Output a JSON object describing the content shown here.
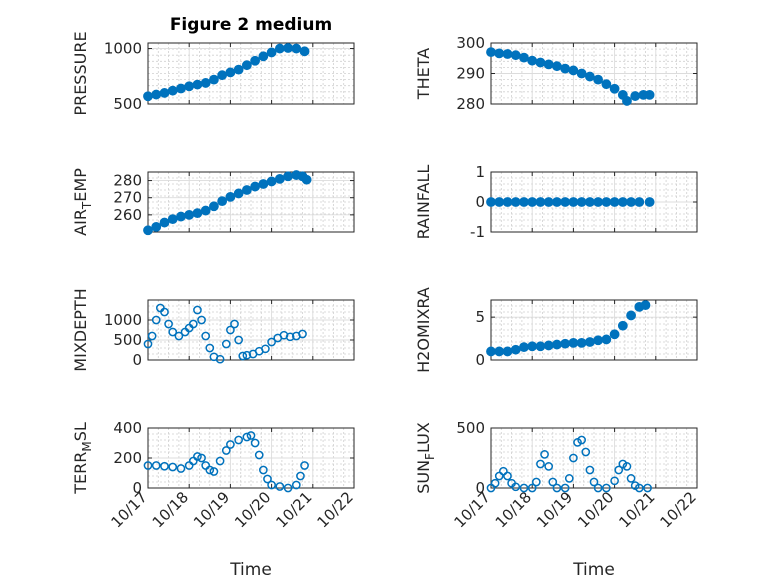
{
  "figure": {
    "title": "Figure 2 medium",
    "xlabel": "Time",
    "marker_color": "#0072BD"
  },
  "chart_data": [
    {
      "type": "scatter",
      "name": "pressure",
      "ylabel": "PRESSURE",
      "ylim": [
        500,
        1050
      ],
      "yticks": [
        500,
        1000
      ],
      "ytick_labels": [
        "500",
        "1000"
      ],
      "x_range": [
        "10/17",
        "10/22"
      ],
      "xticks": [
        "10/17",
        "10/18",
        "10/19",
        "10/20",
        "10/21",
        "10/22"
      ],
      "show_xtick_labels": false,
      "marker": "filled-circle",
      "points": [
        [
          0,
          570
        ],
        [
          0.2,
          585
        ],
        [
          0.4,
          600
        ],
        [
          0.6,
          620
        ],
        [
          0.8,
          640
        ],
        [
          1.0,
          660
        ],
        [
          1.2,
          675
        ],
        [
          1.4,
          690
        ],
        [
          1.6,
          720
        ],
        [
          1.8,
          760
        ],
        [
          2.0,
          785
        ],
        [
          2.2,
          810
        ],
        [
          2.4,
          850
        ],
        [
          2.6,
          890
        ],
        [
          2.8,
          930
        ],
        [
          3.0,
          965
        ],
        [
          3.2,
          1000
        ],
        [
          3.4,
          1005
        ],
        [
          3.6,
          1000
        ],
        [
          3.8,
          975
        ]
      ]
    },
    {
      "type": "scatter",
      "name": "theta",
      "ylabel": "THETA",
      "ylim": [
        280,
        300
      ],
      "yticks": [
        280,
        290,
        300
      ],
      "ytick_labels": [
        "280",
        "290",
        "300"
      ],
      "x_range": [
        "10/17",
        "10/22"
      ],
      "xticks": [
        "10/17",
        "10/18",
        "10/19",
        "10/20",
        "10/21",
        "10/22"
      ],
      "show_xtick_labels": false,
      "marker": "filled-circle",
      "points": [
        [
          0,
          297
        ],
        [
          0.2,
          296.6
        ],
        [
          0.4,
          296.4
        ],
        [
          0.6,
          296
        ],
        [
          0.8,
          295.2
        ],
        [
          1.0,
          294.2
        ],
        [
          1.2,
          293.6
        ],
        [
          1.4,
          293
        ],
        [
          1.6,
          292.4
        ],
        [
          1.8,
          291.6
        ],
        [
          2.0,
          291
        ],
        [
          2.2,
          290
        ],
        [
          2.4,
          289
        ],
        [
          2.6,
          288
        ],
        [
          2.8,
          286.5
        ],
        [
          3.0,
          285
        ],
        [
          3.2,
          283
        ],
        [
          3.3,
          281
        ],
        [
          3.5,
          282.6
        ],
        [
          3.7,
          283
        ],
        [
          3.85,
          283
        ]
      ]
    },
    {
      "type": "scatter",
      "name": "air_temp",
      "ylabel": "AIR_TEMP",
      "ylabel_main": "AIR",
      "ylabel_sub": "T",
      "ylabel_rest": "EMP",
      "ylim": [
        250,
        285
      ],
      "yticks": [
        260,
        270,
        280
      ],
      "ytick_labels": [
        "260",
        "270",
        "280"
      ],
      "x_range": [
        "10/17",
        "10/22"
      ],
      "xticks": [
        "10/17",
        "10/18",
        "10/19",
        "10/20",
        "10/21",
        "10/22"
      ],
      "show_xtick_labels": false,
      "marker": "filled-circle",
      "points": [
        [
          0,
          251
        ],
        [
          0.2,
          253
        ],
        [
          0.4,
          255.5
        ],
        [
          0.6,
          257.5
        ],
        [
          0.8,
          259
        ],
        [
          1.0,
          260
        ],
        [
          1.2,
          261
        ],
        [
          1.4,
          262.5
        ],
        [
          1.6,
          265
        ],
        [
          1.8,
          268
        ],
        [
          2.0,
          270.5
        ],
        [
          2.2,
          272.5
        ],
        [
          2.4,
          274.5
        ],
        [
          2.6,
          276.5
        ],
        [
          2.8,
          278
        ],
        [
          3.0,
          279.5
        ],
        [
          3.2,
          281
        ],
        [
          3.4,
          282.5
        ],
        [
          3.6,
          283.2
        ],
        [
          3.75,
          282.5
        ],
        [
          3.85,
          280.5
        ]
      ]
    },
    {
      "type": "scatter",
      "name": "rainfall",
      "ylabel": "RAINFALL",
      "ylim": [
        -1,
        1
      ],
      "yticks": [
        -1,
        0,
        1
      ],
      "ytick_labels": [
        "-1",
        "0",
        "1"
      ],
      "x_range": [
        "10/17",
        "10/22"
      ],
      "xticks": [
        "10/17",
        "10/18",
        "10/19",
        "10/20",
        "10/21",
        "10/22"
      ],
      "show_xtick_labels": false,
      "marker": "filled-circle",
      "points": [
        [
          0,
          0
        ],
        [
          0.2,
          0
        ],
        [
          0.4,
          0
        ],
        [
          0.6,
          0
        ],
        [
          0.8,
          0
        ],
        [
          1.0,
          0
        ],
        [
          1.2,
          0
        ],
        [
          1.4,
          0
        ],
        [
          1.6,
          0
        ],
        [
          1.8,
          0
        ],
        [
          2.0,
          0
        ],
        [
          2.2,
          0
        ],
        [
          2.4,
          0
        ],
        [
          2.6,
          0
        ],
        [
          2.8,
          0
        ],
        [
          3.0,
          0
        ],
        [
          3.2,
          0
        ],
        [
          3.4,
          0
        ],
        [
          3.6,
          0
        ],
        [
          3.85,
          0
        ]
      ]
    },
    {
      "type": "scatter",
      "name": "mixdepth",
      "ylabel": "MIXDEPTH",
      "ylim": [
        0,
        1500
      ],
      "yticks": [
        0,
        500,
        1000
      ],
      "ytick_labels": [
        "0",
        "500",
        "1000"
      ],
      "x_range": [
        "10/17",
        "10/22"
      ],
      "xticks": [
        "10/17",
        "10/18",
        "10/19",
        "10/20",
        "10/21",
        "10/22"
      ],
      "show_xtick_labels": false,
      "marker": "open-circle",
      "points": [
        [
          0,
          400
        ],
        [
          0.1,
          600
        ],
        [
          0.2,
          1000
        ],
        [
          0.3,
          1300
        ],
        [
          0.4,
          1200
        ],
        [
          0.5,
          900
        ],
        [
          0.6,
          700
        ],
        [
          0.75,
          600
        ],
        [
          0.9,
          700
        ],
        [
          1.0,
          800
        ],
        [
          1.1,
          900
        ],
        [
          1.2,
          1250
        ],
        [
          1.3,
          1000
        ],
        [
          1.4,
          600
        ],
        [
          1.5,
          300
        ],
        [
          1.6,
          80
        ],
        [
          1.75,
          20
        ],
        [
          1.9,
          400
        ],
        [
          2.0,
          750
        ],
        [
          2.1,
          900
        ],
        [
          2.2,
          500
        ],
        [
          2.3,
          100
        ],
        [
          2.4,
          120
        ],
        [
          2.55,
          150
        ],
        [
          2.7,
          220
        ],
        [
          2.85,
          280
        ],
        [
          3.0,
          450
        ],
        [
          3.15,
          550
        ],
        [
          3.3,
          620
        ],
        [
          3.45,
          580
        ],
        [
          3.6,
          600
        ],
        [
          3.75,
          650
        ]
      ]
    },
    {
      "type": "scatter",
      "name": "h2omixra",
      "ylabel": "H2OMIXRA",
      "ylim": [
        0,
        7
      ],
      "yticks": [
        0,
        5
      ],
      "ytick_labels": [
        "0",
        "5"
      ],
      "x_range": [
        "10/17",
        "10/22"
      ],
      "xticks": [
        "10/17",
        "10/18",
        "10/19",
        "10/20",
        "10/21",
        "10/22"
      ],
      "show_xtick_labels": false,
      "marker": "filled-circle",
      "points": [
        [
          0,
          1
        ],
        [
          0.2,
          1
        ],
        [
          0.4,
          1
        ],
        [
          0.6,
          1.2
        ],
        [
          0.8,
          1.5
        ],
        [
          1.0,
          1.6
        ],
        [
          1.2,
          1.6
        ],
        [
          1.4,
          1.7
        ],
        [
          1.6,
          1.8
        ],
        [
          1.8,
          1.9
        ],
        [
          2.0,
          2
        ],
        [
          2.2,
          2
        ],
        [
          2.4,
          2.1
        ],
        [
          2.6,
          2.3
        ],
        [
          2.8,
          2.4
        ],
        [
          3.0,
          3
        ],
        [
          3.2,
          4
        ],
        [
          3.4,
          5.2
        ],
        [
          3.6,
          6.2
        ],
        [
          3.75,
          6.4
        ]
      ]
    },
    {
      "type": "scatter",
      "name": "terr_msl",
      "ylabel": "TERR_MSL",
      "ylabel_main": "TERR",
      "ylabel_sub": "M",
      "ylabel_rest": "SL",
      "ylim": [
        0,
        400
      ],
      "yticks": [
        0,
        200,
        400
      ],
      "ytick_labels": [
        "0",
        "200",
        "400"
      ],
      "x_range": [
        "10/17",
        "10/22"
      ],
      "xticks": [
        "10/17",
        "10/18",
        "10/19",
        "10/20",
        "10/21",
        "10/22"
      ],
      "xtick_labels": [
        "10/17",
        "10/18",
        "10/19",
        "10/20",
        "10/21",
        "10/22"
      ],
      "show_xtick_labels": true,
      "marker": "open-circle",
      "points": [
        [
          0,
          150
        ],
        [
          0.2,
          150
        ],
        [
          0.4,
          145
        ],
        [
          0.6,
          140
        ],
        [
          0.8,
          130
        ],
        [
          1.0,
          150
        ],
        [
          1.1,
          180
        ],
        [
          1.2,
          210
        ],
        [
          1.3,
          200
        ],
        [
          1.4,
          150
        ],
        [
          1.5,
          120
        ],
        [
          1.6,
          110
        ],
        [
          1.75,
          180
        ],
        [
          1.9,
          250
        ],
        [
          2.0,
          290
        ],
        [
          2.2,
          320
        ],
        [
          2.4,
          340
        ],
        [
          2.5,
          350
        ],
        [
          2.6,
          300
        ],
        [
          2.7,
          220
        ],
        [
          2.8,
          120
        ],
        [
          2.9,
          60
        ],
        [
          3.0,
          20
        ],
        [
          3.2,
          10
        ],
        [
          3.4,
          0
        ],
        [
          3.6,
          20
        ],
        [
          3.7,
          80
        ],
        [
          3.8,
          150
        ]
      ]
    },
    {
      "type": "scatter",
      "name": "sun_flux",
      "ylabel": "SUN_FLUX",
      "ylabel_main": "SUN",
      "ylabel_sub": "F",
      "ylabel_rest": "LUX",
      "ylim": [
        0,
        500
      ],
      "yticks": [
        0,
        500
      ],
      "ytick_labels": [
        "0",
        "500"
      ],
      "x_range": [
        "10/17",
        "10/22"
      ],
      "xticks": [
        "10/17",
        "10/18",
        "10/19",
        "10/20",
        "10/21",
        "10/22"
      ],
      "xtick_labels": [
        "10/17",
        "10/18",
        "10/19",
        "10/20",
        "10/21",
        "10/22"
      ],
      "show_xtick_labels": true,
      "marker": "open-circle",
      "points": [
        [
          0,
          0
        ],
        [
          0.1,
          40
        ],
        [
          0.2,
          100
        ],
        [
          0.3,
          140
        ],
        [
          0.4,
          100
        ],
        [
          0.5,
          40
        ],
        [
          0.6,
          10
        ],
        [
          0.8,
          0
        ],
        [
          1.0,
          0
        ],
        [
          1.1,
          50
        ],
        [
          1.2,
          200
        ],
        [
          1.3,
          280
        ],
        [
          1.4,
          180
        ],
        [
          1.5,
          50
        ],
        [
          1.6,
          0
        ],
        [
          1.8,
          0
        ],
        [
          1.9,
          80
        ],
        [
          2.0,
          250
        ],
        [
          2.1,
          380
        ],
        [
          2.2,
          400
        ],
        [
          2.3,
          300
        ],
        [
          2.4,
          150
        ],
        [
          2.5,
          50
        ],
        [
          2.6,
          0
        ],
        [
          2.8,
          0
        ],
        [
          3.0,
          60
        ],
        [
          3.1,
          150
        ],
        [
          3.2,
          200
        ],
        [
          3.3,
          180
        ],
        [
          3.4,
          80
        ],
        [
          3.5,
          20
        ],
        [
          3.6,
          0
        ],
        [
          3.8,
          0
        ]
      ]
    }
  ]
}
